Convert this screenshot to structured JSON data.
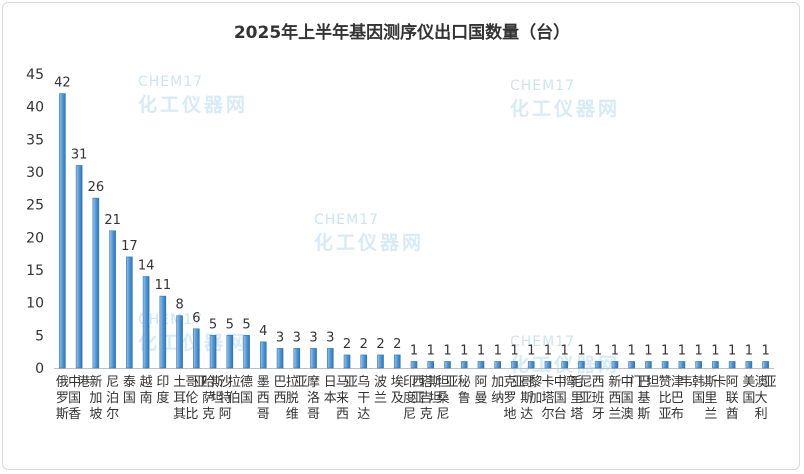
{
  "chart_data": {
    "type": "bar",
    "title": "2025年上半年基因测序仪出口国数量（台）",
    "xlabel": "",
    "ylabel": "",
    "ylim": [
      0,
      45
    ],
    "yticks": [
      0,
      5,
      10,
      15,
      20,
      25,
      30,
      35,
      40,
      45
    ],
    "grid": false,
    "legend": "none",
    "bar_color": "#5b9bd5",
    "categories": [
      "俄罗斯",
      "中国香港",
      "新加坡",
      "尼泊尔",
      "泰国",
      "越南",
      "印度",
      "土耳其",
      "哥伦比亚",
      "哈萨克斯坦",
      "沙特阿拉伯",
      "德国",
      "墨西哥",
      "巴西",
      "拉脱维亚",
      "摩洛哥",
      "日本",
      "马来西亚",
      "乌干达",
      "波兰",
      "埃及",
      "印度尼西亚",
      "塔吉克斯坦",
      "坦桑尼亚",
      "秘鲁",
      "阿曼",
      "加纳",
      "克罗地亚",
      "哥斯达黎加",
      "卡塔尔",
      "中国台湾",
      "毛里塔尼亚",
      "西班牙",
      "新西兰",
      "中国澳门",
      "巴基斯坦",
      "赞比亚",
      "津巴布韦",
      "韩国",
      "斯里兰卡",
      "阿联酋",
      "美国",
      "澳大利亚"
    ],
    "values": [
      42,
      31,
      26,
      21,
      17,
      14,
      11,
      8,
      6,
      5,
      5,
      5,
      4,
      3,
      3,
      3,
      3,
      2,
      2,
      2,
      2,
      1,
      1,
      1,
      1,
      1,
      1,
      1,
      1,
      1,
      1,
      1,
      1,
      1,
      1,
      1,
      1,
      1,
      1,
      1,
      1,
      1,
      1
    ]
  },
  "watermark": {
    "brand": "CHEM17",
    "slogan": "化工仪器网"
  }
}
